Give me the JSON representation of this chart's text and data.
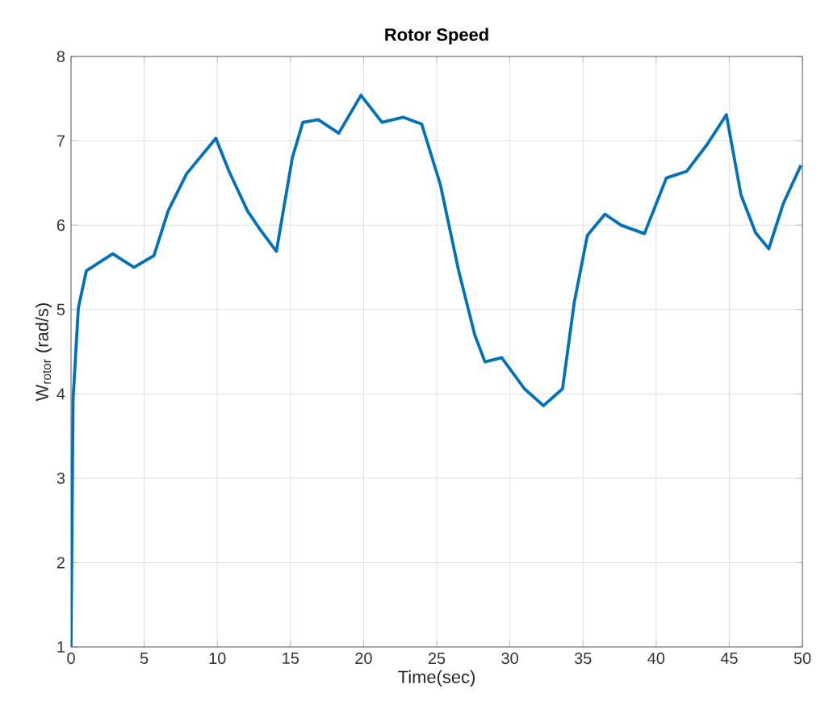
{
  "chart_data": {
    "type": "line",
    "title": "**Rotor Speed**",
    "xlabel": "Time(sec)",
    "ylabel": "W$_{rotor}$ (rad/s)",
    "xlim": [
      0,
      50
    ],
    "ylim": [
      1,
      8
    ],
    "xticks": [
      0,
      5,
      10,
      15,
      20,
      25,
      30,
      35,
      40,
      45,
      50
    ],
    "yticks": [
      1,
      2,
      3,
      4,
      5,
      6,
      7,
      8
    ],
    "grid": true,
    "series": [
      {
        "color": "#0072bd",
        "line_style": "solid",
        "x": [
          0,
          0.14,
          0.5,
          1.05,
          2.85,
          4.3,
          5.67,
          6.64,
          7.9,
          9.9,
          10.8,
          12.06,
          12.96,
          14.04,
          15.13,
          15.85,
          16.9,
          18.3,
          19.82,
          21.26,
          22.7,
          23.97,
          25.25,
          26.5,
          27.6,
          28.3,
          29.44,
          31.0,
          32.3,
          33.6,
          34.4,
          35.3,
          36.5,
          37.6,
          39.2,
          40.7,
          42.1,
          43.5,
          44.8,
          45.8,
          46.8,
          47.7,
          48.7,
          49.9
        ],
        "values": [
          1.0,
          3.94,
          5.02,
          5.46,
          5.66,
          5.5,
          5.64,
          6.17,
          6.61,
          7.03,
          6.64,
          6.17,
          5.94,
          5.69,
          6.8,
          7.22,
          7.25,
          7.09,
          7.54,
          7.22,
          7.28,
          7.2,
          6.48,
          5.46,
          4.7,
          4.38,
          4.43,
          4.06,
          3.86,
          4.06,
          5.08,
          5.88,
          6.13,
          6.0,
          5.9,
          6.56,
          6.64,
          6.96,
          7.31,
          6.36,
          5.91,
          5.72,
          6.26,
          6.71
        ]
      }
    ]
  }
}
